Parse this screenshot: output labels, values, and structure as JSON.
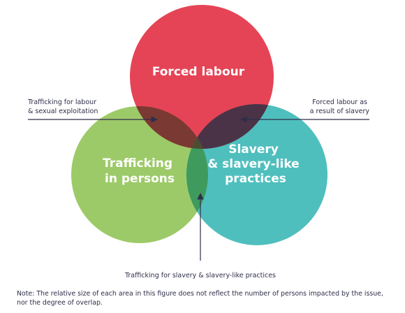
{
  "circles": {
    "forced_labour": {
      "label_lines": [
        "Forced labour"
      ],
      "color": "#e54456"
    },
    "trafficking": {
      "label_lines": [
        "Trafficking",
        "in persons"
      ],
      "color": "#9dca68"
    },
    "slavery": {
      "label_lines": [
        "Slavery",
        "& slavery-like",
        "practices"
      ],
      "color": "#4fbfbe"
    }
  },
  "overlap_colors": {
    "forced_trafficking": "#7a3a33",
    "forced_slavery": "#4a3347",
    "trafficking_slavery": "#3f9a5e",
    "center": "#4d4c32"
  },
  "annotations": {
    "top_left": [
      "Trafficking for labour",
      "& sexual exploitation"
    ],
    "top_right": [
      "Forced labour as",
      "a result of slavery"
    ],
    "bottom": [
      "Trafficking for slavery & slavery-like practices"
    ]
  },
  "note": {
    "lines": [
      "Note: The relative size of each area in this figure does not reflect the number of persons impacted by the issue,",
      "nor the degree of overlap."
    ]
  },
  "line_color": "#2e2e4a"
}
